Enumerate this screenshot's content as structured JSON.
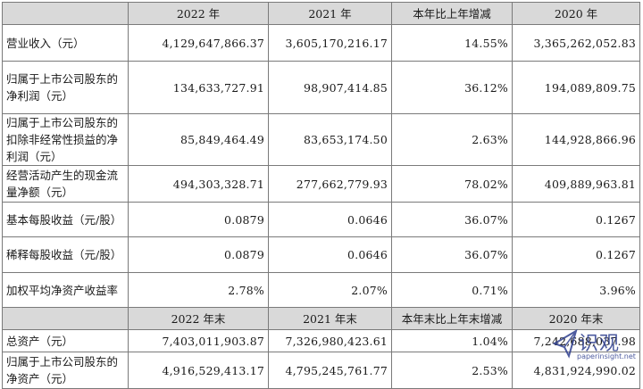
{
  "header1": [
    "",
    "2022 年",
    "2021 年",
    "本年比上年增减",
    "2020 年"
  ],
  "rows1": [
    {
      "label": "营业收入（元）",
      "v": [
        "4,129,647,866.37",
        "3,605,170,216.17",
        "14.55%",
        "3,365,262,052.83"
      ]
    },
    {
      "label": "归属于上市公司股东的净利润（元）",
      "v": [
        "134,633,727.91",
        "98,907,414.85",
        "36.12%",
        "194,089,809.75"
      ]
    },
    {
      "label": "归属于上市公司股东的扣除非经常性损益的净利润（元）",
      "v": [
        "85,849,464.49",
        "83,653,174.50",
        "2.63%",
        "144,928,866.96"
      ]
    },
    {
      "label": "经营活动产生的现金流量净额（元）",
      "v": [
        "494,303,328.71",
        "277,662,779.93",
        "78.02%",
        "409,889,963.81"
      ]
    },
    {
      "label": "基本每股收益（元/股）",
      "v": [
        "0.0879",
        "0.0646",
        "36.07%",
        "0.1267"
      ]
    },
    {
      "label": "稀释每股收益（元/股）",
      "v": [
        "0.0879",
        "0.0646",
        "36.07%",
        "0.1267"
      ]
    },
    {
      "label": "加权平均净资产收益率",
      "v": [
        "2.78%",
        "2.07%",
        "0.71%",
        "3.96%"
      ]
    }
  ],
  "header2": [
    "",
    "2022 年末",
    "2021 年末",
    "本年末比上年末增减",
    "2020 年末"
  ],
  "rows2": [
    {
      "label": "总资产（元）",
      "v": [
        "7,403,011,903.87",
        "7,326,980,423.61",
        "1.04%",
        "7,242,688,037.98"
      ]
    },
    {
      "label": "归属于上市公司股东的净资产（元）",
      "v": [
        "4,916,529,413.17",
        "4,795,245,761.77",
        "2.53%",
        "4,831,924,990.02"
      ]
    }
  ],
  "watermark": {
    "text": "识观",
    "url": "paperinsight.net",
    "icon": "paper-plane-logo"
  }
}
